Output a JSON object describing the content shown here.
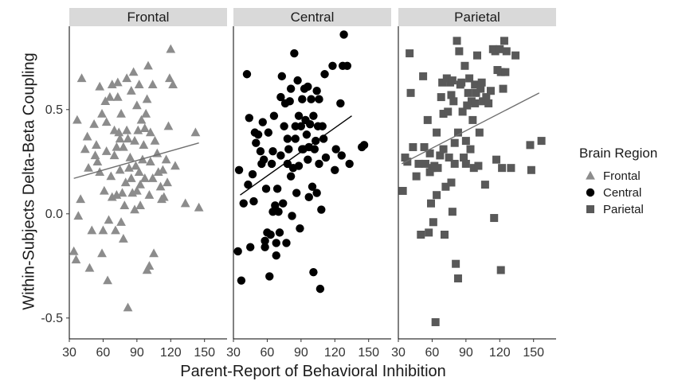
{
  "chart_data": {
    "type": "scatter",
    "xlabel": "Parent-Report of Behavioral Inhibition",
    "ylabel": "Within-Subjects Delta-Beta Coupling",
    "xlim": [
      30,
      170
    ],
    "ylim": [
      -0.6,
      0.9
    ],
    "x_ticks": [
      "30",
      "60",
      "90",
      "120",
      "150"
    ],
    "y_ticks": [
      "-0.5",
      "0.0",
      "0.5"
    ],
    "grid": false,
    "legend": {
      "title": "Brain Region",
      "placement": "right",
      "items": [
        {
          "label": "Frontal",
          "shape": "triangle",
          "color": "#8c8c8c"
        },
        {
          "label": "Central",
          "shape": "circle",
          "color": "#000000"
        },
        {
          "label": "Parietal",
          "shape": "square",
          "color": "#595959"
        }
      ]
    },
    "panels": [
      {
        "name": "Frontal",
        "color": "#8c8c8c",
        "shape": "triangle",
        "trend": {
          "x": [
            34,
            145
          ],
          "y": [
            0.17,
            0.34
          ]
        },
        "points": [
          [
            34,
            -0.18
          ],
          [
            36,
            -0.22
          ],
          [
            38,
            -0.01
          ],
          [
            37,
            0.45
          ],
          [
            41,
            0.65
          ],
          [
            40,
            0.07
          ],
          [
            44,
            0.31
          ],
          [
            46,
            0.37
          ],
          [
            47,
            0.22
          ],
          [
            48,
            -0.26
          ],
          [
            50,
            -0.08
          ],
          [
            52,
            0.43
          ],
          [
            53,
            0.28
          ],
          [
            54,
            0.33
          ],
          [
            55,
            0.25
          ],
          [
            57,
            0.2
          ],
          [
            57,
            0.61
          ],
          [
            59,
            -0.19
          ],
          [
            59,
            0.48
          ],
          [
            60,
            -0.08
          ],
          [
            61,
            0.11
          ],
          [
            62,
            0.54
          ],
          [
            63,
            0.44
          ],
          [
            63,
            0.3
          ],
          [
            64,
            -0.32
          ],
          [
            65,
            -0.03
          ],
          [
            66,
            0.56
          ],
          [
            67,
            0.18
          ],
          [
            68,
            0.62
          ],
          [
            68,
            0.08
          ],
          [
            70,
            0.28
          ],
          [
            70,
            0.4
          ],
          [
            71,
            -0.08
          ],
          [
            72,
            0.09
          ],
          [
            72,
            0.32
          ],
          [
            73,
            0.56
          ],
          [
            73,
            0.63
          ],
          [
            74,
            0.39
          ],
          [
            75,
            0.21
          ],
          [
            75,
            0.36
          ],
          [
            76,
            -0.04
          ],
          [
            76,
            0.48
          ],
          [
            77,
            0.1
          ],
          [
            78,
            -0.12
          ],
          [
            78,
            0.32
          ],
          [
            79,
            0.04
          ],
          [
            80,
            0.15
          ],
          [
            81,
            0.4
          ],
          [
            81,
            0.65
          ],
          [
            82,
            -0.45
          ],
          [
            82,
            0.36
          ],
          [
            83,
            0.22
          ],
          [
            84,
            0.27
          ],
          [
            85,
            0.17
          ],
          [
            85,
            0.59
          ],
          [
            86,
            0.1
          ],
          [
            87,
            0.68
          ],
          [
            88,
            0.02
          ],
          [
            88,
            0.35
          ],
          [
            89,
            0.23
          ],
          [
            90,
            0.11
          ],
          [
            90,
            0.52
          ],
          [
            91,
            0.4
          ],
          [
            92,
            0.2
          ],
          [
            92,
            0.62
          ],
          [
            93,
            0.04
          ],
          [
            93,
            0.14
          ],
          [
            94,
            0.45
          ],
          [
            95,
            0.26
          ],
          [
            96,
            0.33
          ],
          [
            97,
            0.17
          ],
          [
            97,
            0.41
          ],
          [
            98,
            0.48
          ],
          [
            99,
            -0.27
          ],
          [
            99,
            0.55
          ],
          [
            100,
            0.71
          ],
          [
            101,
            -0.25
          ],
          [
            101,
            0.09
          ],
          [
            102,
            0.25
          ],
          [
            102,
            0.39
          ],
          [
            104,
            0.62
          ],
          [
            104,
            0.17
          ],
          [
            105,
            -0.19
          ],
          [
            106,
            0.35
          ],
          [
            108,
            0.29
          ],
          [
            109,
            0.2
          ],
          [
            111,
            0.13
          ],
          [
            112,
            0.07
          ],
          [
            113,
            0.21
          ],
          [
            114,
            0.08
          ],
          [
            116,
            0.26
          ],
          [
            117,
            0.15
          ],
          [
            118,
            0.42
          ],
          [
            119,
            0.65
          ],
          [
            120,
            0.79
          ],
          [
            122,
            0.62
          ],
          [
            124,
            0.23
          ],
          [
            133,
            0.05
          ],
          [
            142,
            0.39
          ],
          [
            145,
            0.03
          ]
        ]
      },
      {
        "name": "Central",
        "color": "#000000",
        "shape": "circle",
        "trend": {
          "x": [
            36,
            135
          ],
          "y": [
            0.09,
            0.47
          ]
        },
        "points": [
          [
            34,
            -0.18
          ],
          [
            35,
            0.21
          ],
          [
            37,
            -0.32
          ],
          [
            39,
            0.05
          ],
          [
            42,
            0.67
          ],
          [
            43,
            0.14
          ],
          [
            44,
            0.46
          ],
          [
            45,
            -0.16
          ],
          [
            47,
            0.19
          ],
          [
            48,
            0.06
          ],
          [
            49,
            0.39
          ],
          [
            50,
            0.34
          ],
          [
            52,
            0.38
          ],
          [
            54,
            0.3
          ],
          [
            55,
            0.24
          ],
          [
            56,
            0.44
          ],
          [
            57,
            0.26
          ],
          [
            58,
            -0.16
          ],
          [
            58,
            -0.13
          ],
          [
            59,
            0.12
          ],
          [
            60,
            -0.09
          ],
          [
            61,
            0.39
          ],
          [
            62,
            -0.3
          ],
          [
            63,
            -0.1
          ],
          [
            64,
            0.24
          ],
          [
            65,
            0.01
          ],
          [
            65,
            0.3
          ],
          [
            66,
            0.47
          ],
          [
            67,
            0.04
          ],
          [
            68,
            -0.14
          ],
          [
            68,
            -0.2
          ],
          [
            69,
            0.12
          ],
          [
            70,
            0.01
          ],
          [
            71,
            -0.09
          ],
          [
            72,
            0.28
          ],
          [
            72,
            0.56
          ],
          [
            73,
            0.66
          ],
          [
            74,
            0.05
          ],
          [
            75,
            0.42
          ],
          [
            76,
            0.53
          ],
          [
            77,
            -0.14
          ],
          [
            78,
            0.24
          ],
          [
            78,
            0.36
          ],
          [
            79,
            0.31
          ],
          [
            80,
            0.54
          ],
          [
            81,
            0.18
          ],
          [
            81,
            0.6
          ],
          [
            82,
            -0.01
          ],
          [
            83,
            0.22
          ],
          [
            84,
            0.77
          ],
          [
            85,
            0.36
          ],
          [
            85,
            0.42
          ],
          [
            86,
            0.1
          ],
          [
            87,
            0.64
          ],
          [
            88,
            0.23
          ],
          [
            88,
            0.47
          ],
          [
            89,
            -0.07
          ],
          [
            90,
            0.42
          ],
          [
            91,
            0.31
          ],
          [
            91,
            0.55
          ],
          [
            92,
            0.31
          ],
          [
            93,
            0.6
          ],
          [
            94,
            0.45
          ],
          [
            95,
            0.38
          ],
          [
            96,
            0.26
          ],
          [
            96,
            0.61
          ],
          [
            97,
            0.08
          ],
          [
            97,
            0.32
          ],
          [
            98,
            0.43
          ],
          [
            99,
            0.55
          ],
          [
            100,
            0.13
          ],
          [
            101,
            0.47
          ],
          [
            101,
            -0.28
          ],
          [
            102,
            0.31
          ],
          [
            103,
            0.35
          ],
          [
            104,
            0.59
          ],
          [
            104,
            0.1
          ],
          [
            105,
            0.42
          ],
          [
            106,
            0.55
          ],
          [
            106,
            0.24
          ],
          [
            107,
            -0.36
          ],
          [
            108,
            0.02
          ],
          [
            109,
            0.42
          ],
          [
            110,
            0.36
          ],
          [
            111,
            0.67
          ],
          [
            112,
            0.27
          ],
          [
            118,
            0.71
          ],
          [
            120,
            0.21
          ],
          [
            121,
            0.31
          ],
          [
            125,
            0.53
          ],
          [
            126,
            0.28
          ],
          [
            127,
            0.71
          ],
          [
            128,
            0.86
          ],
          [
            131,
            0.71
          ],
          [
            133,
            0.24
          ],
          [
            144,
            0.32
          ],
          [
            146,
            0.33
          ]
        ]
      },
      {
        "name": "Parietal",
        "color": "#595959",
        "shape": "square",
        "trend": {
          "x": [
            33,
            155
          ],
          "y": [
            0.24,
            0.58
          ]
        },
        "points": [
          [
            34,
            0.11
          ],
          [
            36,
            0.27
          ],
          [
            38,
            0.25
          ],
          [
            40,
            0.77
          ],
          [
            41,
            0.58
          ],
          [
            43,
            0.32
          ],
          [
            46,
            0.18
          ],
          [
            48,
            0.24
          ],
          [
            50,
            -0.1
          ],
          [
            52,
            0.66
          ],
          [
            53,
            0.32
          ],
          [
            54,
            0.24
          ],
          [
            56,
            0.45
          ],
          [
            57,
            -0.09
          ],
          [
            58,
            0.2
          ],
          [
            58,
            0.29
          ],
          [
            59,
            0.05
          ],
          [
            60,
            0.22
          ],
          [
            61,
            -0.04
          ],
          [
            62,
            0.23
          ],
          [
            63,
            -0.52
          ],
          [
            64,
            0.39
          ],
          [
            64,
            0.09
          ],
          [
            65,
            0.22
          ],
          [
            67,
            0.28
          ],
          [
            68,
            0.56
          ],
          [
            69,
            0.63
          ],
          [
            70,
            0.48
          ],
          [
            70,
            0.31
          ],
          [
            71,
            -0.1
          ],
          [
            72,
            0.13
          ],
          [
            73,
            0.65
          ],
          [
            74,
            0.49
          ],
          [
            75,
            0.27
          ],
          [
            76,
            0.63
          ],
          [
            77,
            0.57
          ],
          [
            77,
            0.15
          ],
          [
            78,
            0.01
          ],
          [
            78,
            0.64
          ],
          [
            79,
            0.54
          ],
          [
            80,
            0.24
          ],
          [
            80,
            0.34
          ],
          [
            81,
            -0.24
          ],
          [
            82,
            0.83
          ],
          [
            83,
            0.39
          ],
          [
            83,
            -0.31
          ],
          [
            84,
            0.78
          ],
          [
            85,
            0.62
          ],
          [
            86,
            0.63
          ],
          [
            87,
            0.49
          ],
          [
            88,
            0.27
          ],
          [
            89,
            0.71
          ],
          [
            90,
            0.35
          ],
          [
            90,
            0.24
          ],
          [
            91,
            0.52
          ],
          [
            92,
            0.58
          ],
          [
            93,
            0.65
          ],
          [
            94,
            0.31
          ],
          [
            95,
            0.54
          ],
          [
            96,
            0.45
          ],
          [
            97,
            0.22
          ],
          [
            98,
            0.53
          ],
          [
            98,
            0.62
          ],
          [
            99,
            0.58
          ],
          [
            100,
            0.76
          ],
          [
            101,
            0.23
          ],
          [
            102,
            0.39
          ],
          [
            103,
            0.6
          ],
          [
            104,
            0.63
          ],
          [
            105,
            0.54
          ],
          [
            107,
            0.14
          ],
          [
            108,
            0.56
          ],
          [
            110,
            0.53
          ],
          [
            112,
            0.59
          ],
          [
            114,
            0.79
          ],
          [
            115,
            -0.02
          ],
          [
            116,
            0.78
          ],
          [
            117,
            0.26
          ],
          [
            118,
            0.69
          ],
          [
            120,
            0.79
          ],
          [
            121,
            0.68
          ],
          [
            121,
            -0.27
          ],
          [
            122,
            0.22
          ],
          [
            123,
            0.6
          ],
          [
            124,
            0.83
          ],
          [
            125,
            0.68
          ],
          [
            126,
            0.78
          ],
          [
            130,
            0.22
          ],
          [
            134,
            0.76
          ],
          [
            147,
            0.33
          ],
          [
            148,
            0.21
          ],
          [
            157,
            0.35
          ]
        ]
      }
    ]
  }
}
